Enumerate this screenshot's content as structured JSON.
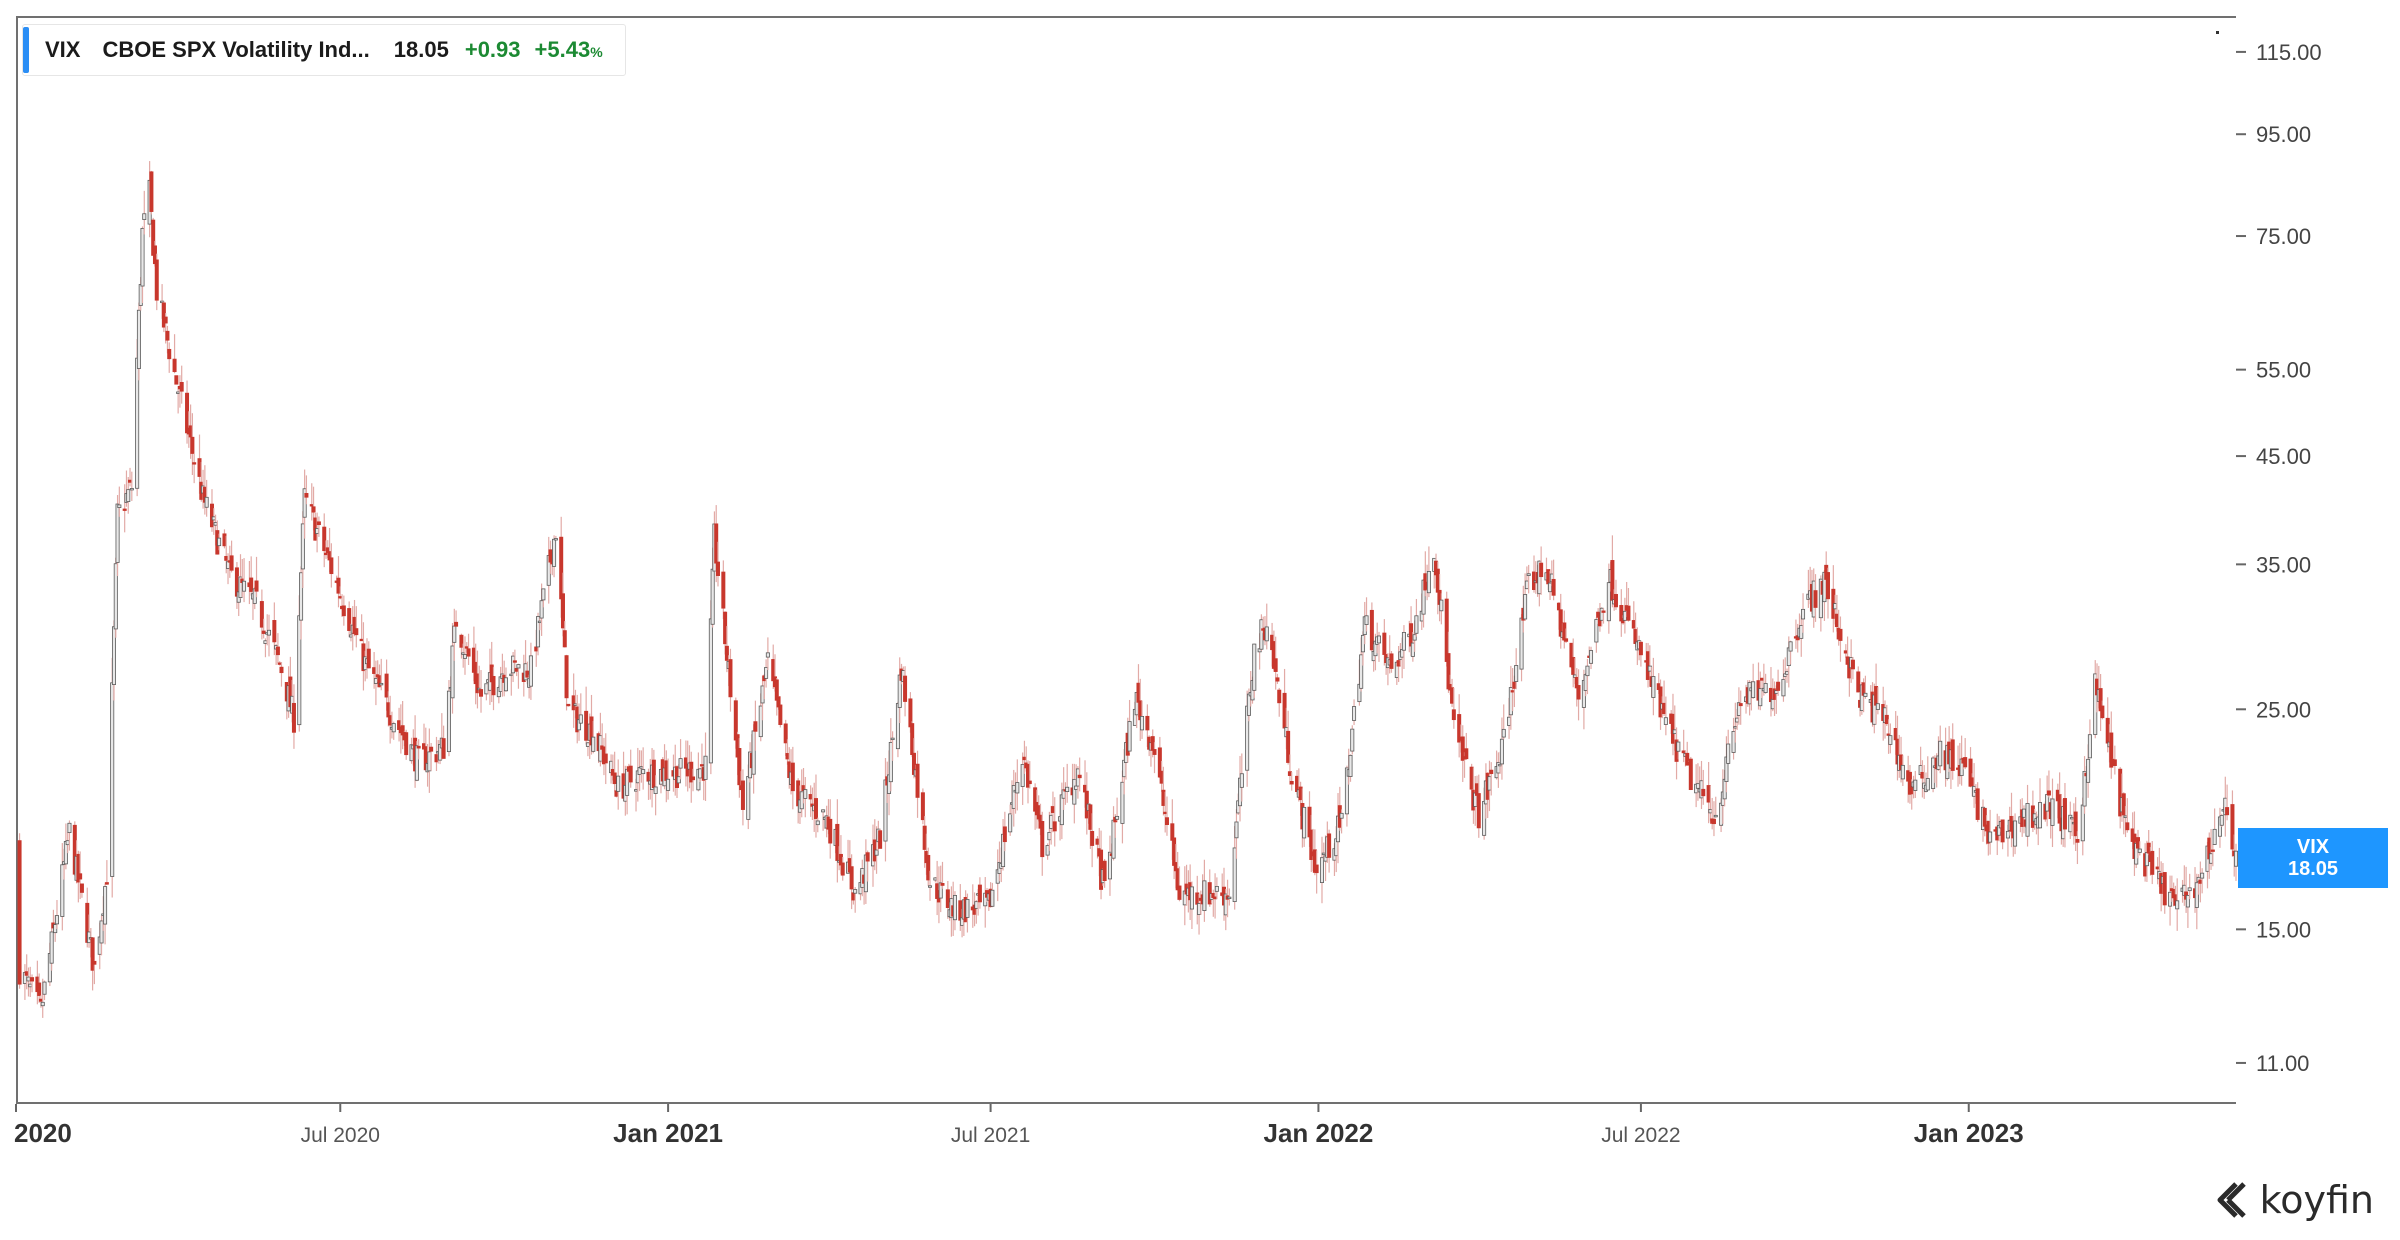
{
  "legend": {
    "ticker": "VIX",
    "name": "CBOE SPX Volatility Ind...",
    "price": "18.05",
    "change": "+0.93",
    "change_pct": "+5.43",
    "pct_symbol": "%",
    "accent_color": "#2b8ef5",
    "change_color": "#1c8a33"
  },
  "price_tag": {
    "ticker": "VIX",
    "value": "18.05",
    "color": "#1e96ff"
  },
  "brand": {
    "name": "koyfin",
    "icon": "koyfin-logo-icon"
  },
  "chart_data": {
    "type": "candlestick",
    "title": "",
    "xlabel": "",
    "ylabel": "",
    "scale": "log",
    "y_ticks": [
      11,
      15,
      25,
      35,
      45,
      55,
      75,
      95,
      115
    ],
    "y_tick_labels": [
      "11.00",
      "15.00",
      "25.00",
      "35.00",
      "45.00",
      "55.00",
      "75.00",
      "95.00",
      "115.00"
    ],
    "ylim": [
      10,
      125
    ],
    "x_range": [
      "2020-01-01",
      "2023-05-31"
    ],
    "x_ticks": [
      {
        "date": "2020-01-01",
        "label": "2020",
        "major": true
      },
      {
        "date": "2020-07-01",
        "label": "Jul 2020",
        "major": false
      },
      {
        "date": "2021-01-01",
        "label": "Jan 2021",
        "major": true
      },
      {
        "date": "2021-07-01",
        "label": "Jul 2021",
        "major": false
      },
      {
        "date": "2022-01-01",
        "label": "Jan 2022",
        "major": true
      },
      {
        "date": "2022-07-01",
        "label": "Jul 2022",
        "major": false
      },
      {
        "date": "2023-01-01",
        "label": "Jan 2023",
        "major": true
      }
    ],
    "up_color": "#e8e8e8",
    "up_outline": "#5a5a5a",
    "down_color": "#c8372d",
    "wick_color": "#e2aaa6",
    "grid": false,
    "series": [
      {
        "name": "VIX",
        "close_points": [
          [
            "2020-01-02",
            13.8
          ],
          [
            "2020-01-15",
            12.4
          ],
          [
            "2020-01-31",
            18.8
          ],
          [
            "2020-02-14",
            13.7
          ],
          [
            "2020-02-21",
            17.1
          ],
          [
            "2020-02-27",
            39.2
          ],
          [
            "2020-03-06",
            41.9
          ],
          [
            "2020-03-12",
            75.5
          ],
          [
            "2020-03-16",
            82.7
          ],
          [
            "2020-03-20",
            66.0
          ],
          [
            "2020-03-31",
            53.5
          ],
          [
            "2020-04-15",
            40.8
          ],
          [
            "2020-04-30",
            34.2
          ],
          [
            "2020-05-15",
            31.9
          ],
          [
            "2020-05-29",
            27.5
          ],
          [
            "2020-06-05",
            24.5
          ],
          [
            "2020-06-11",
            40.8
          ],
          [
            "2020-06-26",
            34.7
          ],
          [
            "2020-07-15",
            27.8
          ],
          [
            "2020-07-31",
            24.5
          ],
          [
            "2020-08-14",
            22.1
          ],
          [
            "2020-08-28",
            22.9
          ],
          [
            "2020-09-04",
            30.8
          ],
          [
            "2020-09-18",
            25.8
          ],
          [
            "2020-10-02",
            27.6
          ],
          [
            "2020-10-16",
            27.4
          ],
          [
            "2020-10-30",
            38.0
          ],
          [
            "2020-11-06",
            24.9
          ],
          [
            "2020-11-20",
            23.7
          ],
          [
            "2020-12-04",
            20.8
          ],
          [
            "2020-12-18",
            21.6
          ],
          [
            "2021-01-08",
            21.6
          ],
          [
            "2021-01-22",
            21.9
          ],
          [
            "2021-01-27",
            37.2
          ],
          [
            "2021-02-12",
            19.9
          ],
          [
            "2021-02-26",
            27.9
          ],
          [
            "2021-03-12",
            20.7
          ],
          [
            "2021-03-31",
            19.4
          ],
          [
            "2021-04-16",
            16.3
          ],
          [
            "2021-04-30",
            18.6
          ],
          [
            "2021-05-12",
            27.6
          ],
          [
            "2021-05-28",
            16.8
          ],
          [
            "2021-06-11",
            15.7
          ],
          [
            "2021-06-30",
            15.8
          ],
          [
            "2021-07-19",
            22.5
          ],
          [
            "2021-07-30",
            18.2
          ],
          [
            "2021-08-19",
            21.7
          ],
          [
            "2021-09-03",
            16.4
          ],
          [
            "2021-09-20",
            25.7
          ],
          [
            "2021-09-30",
            23.1
          ],
          [
            "2021-10-15",
            16.3
          ],
          [
            "2021-10-29",
            16.3
          ],
          [
            "2021-11-12",
            16.3
          ],
          [
            "2021-11-26",
            28.6
          ],
          [
            "2021-12-03",
            30.7
          ],
          [
            "2021-12-17",
            21.6
          ],
          [
            "2021-12-31",
            17.2
          ],
          [
            "2022-01-14",
            19.2
          ],
          [
            "2022-01-27",
            30.5
          ],
          [
            "2022-02-11",
            27.4
          ],
          [
            "2022-02-24",
            30.3
          ],
          [
            "2022-03-07",
            36.5
          ],
          [
            "2022-03-18",
            23.9
          ],
          [
            "2022-04-01",
            19.6
          ],
          [
            "2022-04-14",
            22.7
          ],
          [
            "2022-04-29",
            33.4
          ],
          [
            "2022-05-09",
            34.8
          ],
          [
            "2022-05-27",
            25.7
          ],
          [
            "2022-06-13",
            34.0
          ],
          [
            "2022-06-30",
            28.7
          ],
          [
            "2022-07-15",
            24.2
          ],
          [
            "2022-07-29",
            21.3
          ],
          [
            "2022-08-12",
            19.5
          ],
          [
            "2022-08-26",
            25.6
          ],
          [
            "2022-09-16",
            26.3
          ],
          [
            "2022-09-30",
            31.6
          ],
          [
            "2022-10-12",
            33.6
          ],
          [
            "2022-10-31",
            25.9
          ],
          [
            "2022-11-15",
            24.5
          ],
          [
            "2022-11-30",
            20.6
          ],
          [
            "2022-12-16",
            22.6
          ],
          [
            "2022-12-30",
            21.7
          ],
          [
            "2023-01-13",
            18.4
          ],
          [
            "2023-01-31",
            19.4
          ],
          [
            "2023-02-17",
            20.0
          ],
          [
            "2023-03-03",
            18.5
          ],
          [
            "2023-03-13",
            26.5
          ],
          [
            "2023-03-31",
            18.7
          ],
          [
            "2023-04-14",
            17.1
          ],
          [
            "2023-04-28",
            15.8
          ],
          [
            "2023-05-12",
            17.0
          ],
          [
            "2023-05-24",
            20.0
          ],
          [
            "2023-05-31",
            18.05
          ]
        ]
      }
    ]
  }
}
